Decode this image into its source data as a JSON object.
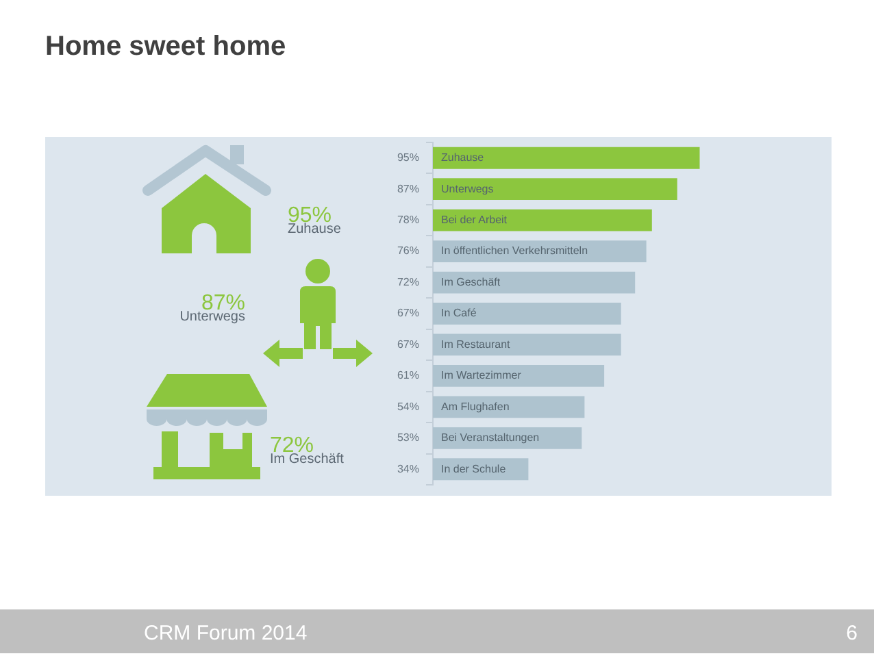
{
  "chart_data": {
    "type": "bar",
    "orientation": "horizontal",
    "title": "Home sweet home",
    "categories": [
      "Zuhause",
      "Unterwegs",
      "Bei der Arbeit",
      "In öffentlichen Verkehrsmitteln",
      "Im Geschäft",
      "In Café",
      "Im Restaurant",
      "Im Wartezimmer",
      "Am Flughafen",
      "Bei Veranstaltungen",
      "In der Schule"
    ],
    "values": [
      95,
      87,
      78,
      76,
      72,
      67,
      67,
      61,
      54,
      53,
      34
    ],
    "colors": [
      "#8cc63e",
      "#8cc63e",
      "#8cc63e",
      "#aec3cf",
      "#aec3cf",
      "#aec3cf",
      "#aec3cf",
      "#aec3cf",
      "#aec3cf",
      "#aec3cf",
      "#aec3cf"
    ],
    "value_labels": [
      "95%",
      "87%",
      "78%",
      "76%",
      "72%",
      "67%",
      "67%",
      "61%",
      "54%",
      "53%",
      "34%"
    ],
    "annotations": [
      "95%",
      "Zuhause",
      "87%",
      "Unterwegs",
      "72%",
      "Im Geschäft",
      "CRM Forum 2014",
      "6"
    ]
  }
}
